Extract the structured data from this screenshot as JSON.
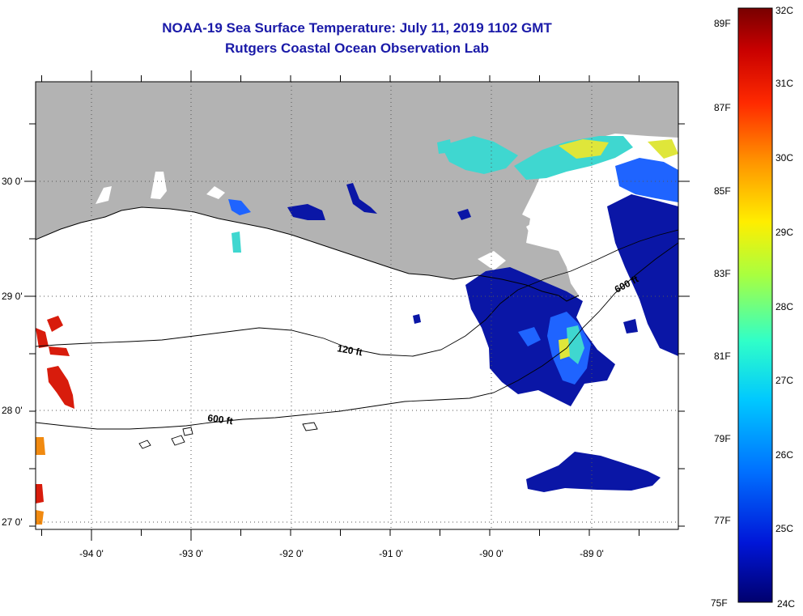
{
  "title": "NOAA-19 Sea Surface Temperature:  July 11, 2019 1102 GMT",
  "subtitle": "Rutgers Coastal Ocean Observation Lab",
  "axes": {
    "lon_ticks": [
      "-94 0'",
      "-93 0'",
      "-92 0'",
      "-91 0'",
      "-90 0'",
      "-89 0'"
    ],
    "lat_ticks": [
      "30 0'",
      "29 0'",
      "28 0'",
      "27 0'"
    ]
  },
  "contours": {
    "shelf_120": "120 ft",
    "slope_600": "600 ft",
    "slope_600_east": "600 ft"
  },
  "colorbar": {
    "fahrenheit": [
      "89F",
      "87F",
      "85F",
      "83F",
      "81F",
      "79F",
      "77F",
      "75F"
    ],
    "celsius": [
      "32C",
      "31C",
      "30C",
      "29C",
      "28C",
      "27C",
      "26C",
      "25C",
      "24C"
    ],
    "colors": [
      "#7a0000",
      "#d40000",
      "#ff3300",
      "#ff8800",
      "#ffee00",
      "#9cff40",
      "#00ffcc",
      "#00aaff",
      "#0030ff",
      "#00007a"
    ]
  },
  "colors": {
    "land": "#b3b3b3",
    "title": "#1a1aa8",
    "sst_cold": "#0a16a6",
    "sst_cool": "#1f64ff",
    "sst_mid": "#3fd7d0",
    "sst_warm": "#dfe63a",
    "sst_hot": "#d81c0c"
  }
}
